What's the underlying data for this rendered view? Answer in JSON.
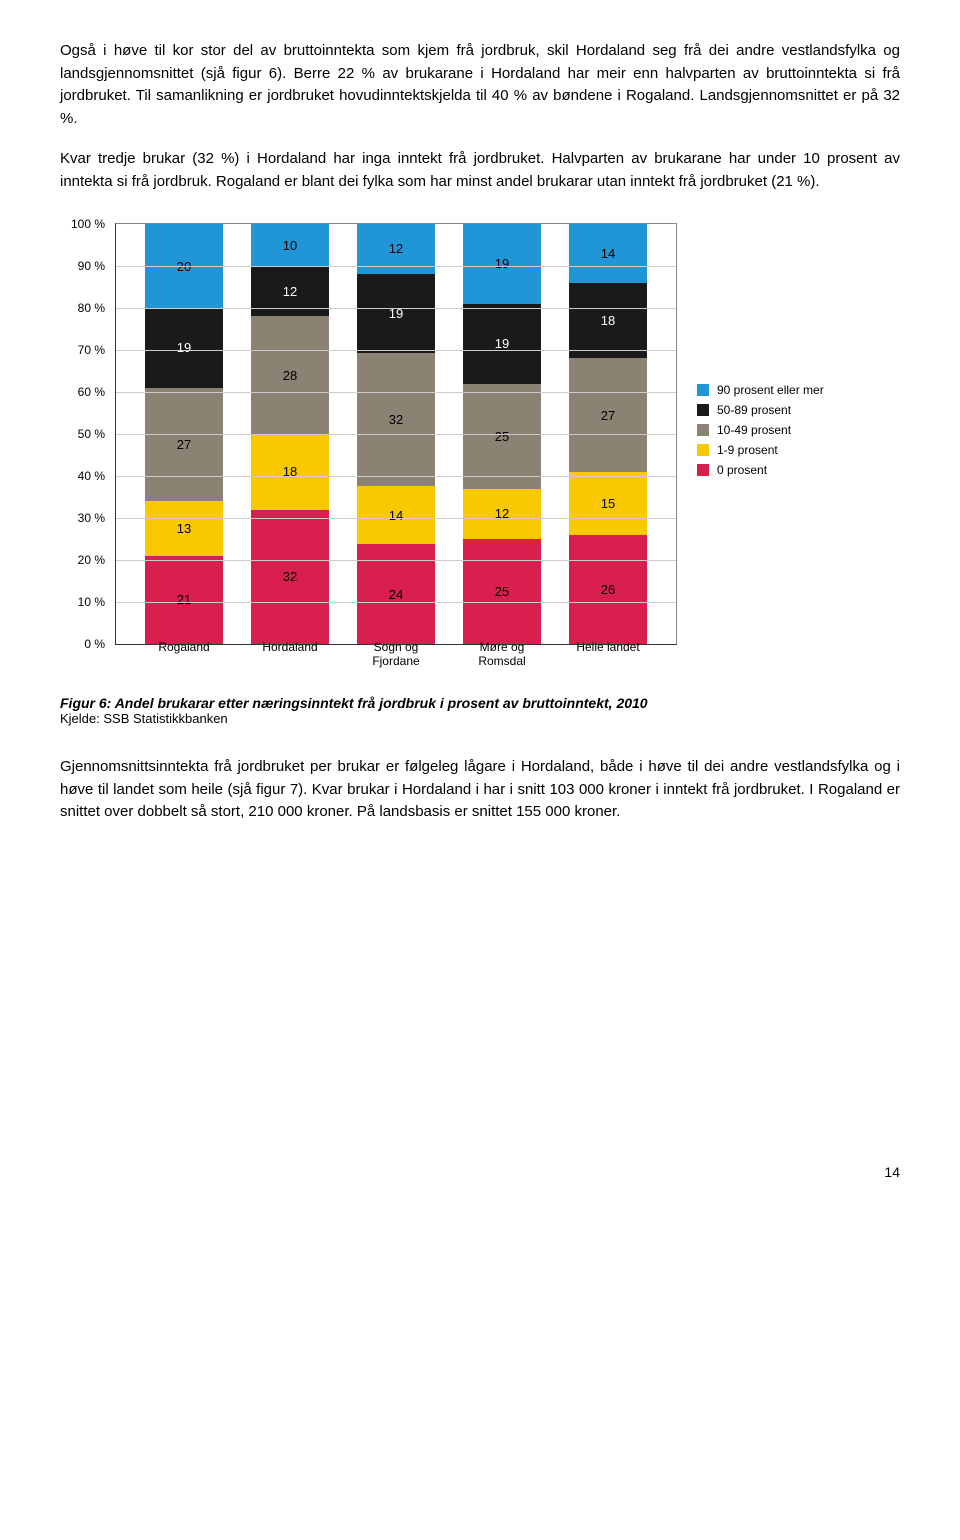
{
  "paragraphs": {
    "p1": "Også i høve til kor stor del av bruttoinntekta som kjem frå jordbruk, skil Hordaland seg frå dei andre vestlandsfylka og landsgjennomsnittet (sjå figur 6). Berre 22 % av brukarane i Hordaland har meir enn halvparten av bruttoinntekta si frå jordbruket. Til samanlikning er jordbruket hovudinntektskjelda til 40 % av bøndene i Rogaland. Landsgjennomsnittet er på 32 %.",
    "p2": "Kvar tredje brukar (32 %) i Hordaland har inga inntekt frå jordbruket. Halvparten av brukarane har under 10 prosent av inntekta si frå jordbruk. Rogaland er blant dei fylka som har minst andel brukarar utan inntekt frå jordbruket (21 %).",
    "p3": "Gjennomsnittsinntekta frå jordbruket per brukar er følgeleg lågare i Hordaland, både i høve til dei andre vestlandsfylka og i høve til landet som heile (sjå figur 7). Kvar brukar i Hordaland i har i snitt 103 000 kroner i inntekt frå jordbruket. I Rogaland er snittet over dobbelt så stort, 210 000 kroner. På landsbasis er snittet 155 000 kroner."
  },
  "chart": {
    "type": "stacked-bar",
    "ylim": [
      0,
      100
    ],
    "ytick_step": 10,
    "categories": [
      "Rogaland",
      "Hordaland",
      "Sogn og Fjordane",
      "Møre og Romsdal",
      "Heile landet"
    ],
    "series_order": [
      "0 prosent",
      "1-9 prosent",
      "10-49 prosent",
      "50-89 prosent",
      "90 prosent eller mer"
    ],
    "colors": {
      "0 prosent": "#d91f4e",
      "1-9 prosent": "#f9c900",
      "10-49 prosent": "#8b8274",
      "50-89 prosent": "#1a1a1a",
      "90 prosent eller mer": "#2196d6"
    },
    "data": {
      "Rogaland": {
        "0 prosent": 21,
        "1-9 prosent": 13,
        "10-49 prosent": 27,
        "50-89 prosent": 19,
        "90 prosent eller mer": 20
      },
      "Hordaland": {
        "0 prosent": 32,
        "1-9 prosent": 18,
        "10-49 prosent": 28,
        "50-89 prosent": 12,
        "90 prosent eller mer": 10
      },
      "Sogn og Fjordane": {
        "0 prosent": 24,
        "1-9 prosent": 14,
        "10-49 prosent": 32,
        "50-89 prosent": 19,
        "90 prosent eller mer": 12
      },
      "Møre og Romsdal": {
        "0 prosent": 25,
        "1-9 prosent": 12,
        "10-49 prosent": 25,
        "50-89 prosent": 19,
        "90 prosent eller mer": 19
      },
      "Heile landet": {
        "0 prosent": 26,
        "1-9 prosent": 15,
        "10-49 prosent": 27,
        "50-89 prosent": 18,
        "90 prosent eller mer": 14
      }
    },
    "legend_labels": {
      "l1": "90 prosent eller mer",
      "l2": "50-89 prosent",
      "l3": "10-49 prosent",
      "l4": "1-9 prosent",
      "l5": "0 prosent"
    }
  },
  "caption": {
    "title": "Figur 6: Andel brukarar etter næringsinntekt frå jordbruk i prosent av bruttoinntekt, 2010",
    "source": "Kjelde: SSB Statistikkbanken"
  },
  "page_number": "14"
}
